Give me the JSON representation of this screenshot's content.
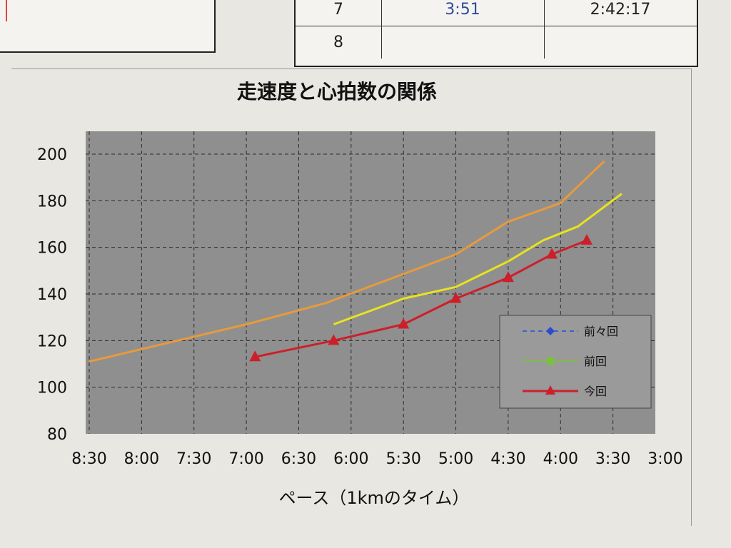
{
  "top_table": {
    "rows": [
      {
        "lap": "7",
        "split": "3:51",
        "total": "2:42:17"
      },
      {
        "lap": "8",
        "split": "",
        "total": ""
      }
    ]
  },
  "colors": {
    "plot_bg": "#8f8f8f",
    "grid": "#2a2a2a",
    "series_prev2": "#e89a3c",
    "series_prev": "#e9e21f",
    "series_now": "#cc1f2a",
    "legend_prev2": "#2a4bd1",
    "legend_prev": "#77c43a"
  },
  "chart_data": {
    "type": "line",
    "title": "走速度と心拍数の関係",
    "xlabel": "ペース（1kmのタイム）",
    "ylabel": "",
    "ylim": [
      80,
      200
    ],
    "yticks": [
      "80",
      "100",
      "120",
      "140",
      "160",
      "180",
      "200"
    ],
    "xticks": [
      "8:30",
      "8:00",
      "7:30",
      "7:00",
      "6:30",
      "6:00",
      "5:30",
      "5:00",
      "4:30",
      "4:00",
      "3:30",
      "3:00"
    ],
    "x_unit": "pace min/km, axis reversed (slow to fast)",
    "series": [
      {
        "name": "前々回",
        "color": "#e89a3c",
        "marker": "none",
        "points": [
          [
            "8:30",
            111
          ],
          [
            "7:00",
            127
          ],
          [
            "6:15",
            136
          ],
          [
            "5:00",
            157
          ],
          [
            "4:30",
            171
          ],
          [
            "4:00",
            179
          ],
          [
            "3:35",
            197
          ]
        ]
      },
      {
        "name": "前回",
        "color": "#e9e21f",
        "marker": "none",
        "points": [
          [
            "6:10",
            127
          ],
          [
            "5:30",
            138
          ],
          [
            "5:00",
            143
          ],
          [
            "4:30",
            154
          ],
          [
            "4:10",
            163
          ],
          [
            "3:50",
            169
          ],
          [
            "3:25",
            183
          ]
        ]
      },
      {
        "name": "今回",
        "color": "#cc1f2a",
        "marker": "triangle",
        "points": [
          [
            "6:55",
            113
          ],
          [
            "6:10",
            120
          ],
          [
            "5:30",
            127
          ],
          [
            "5:00",
            138
          ],
          [
            "4:30",
            147
          ],
          [
            "4:05",
            157
          ],
          [
            "3:45",
            163
          ]
        ]
      }
    ],
    "legend": {
      "placement": "lower-right",
      "entries": [
        "前々回",
        "前回",
        "今回"
      ]
    }
  }
}
